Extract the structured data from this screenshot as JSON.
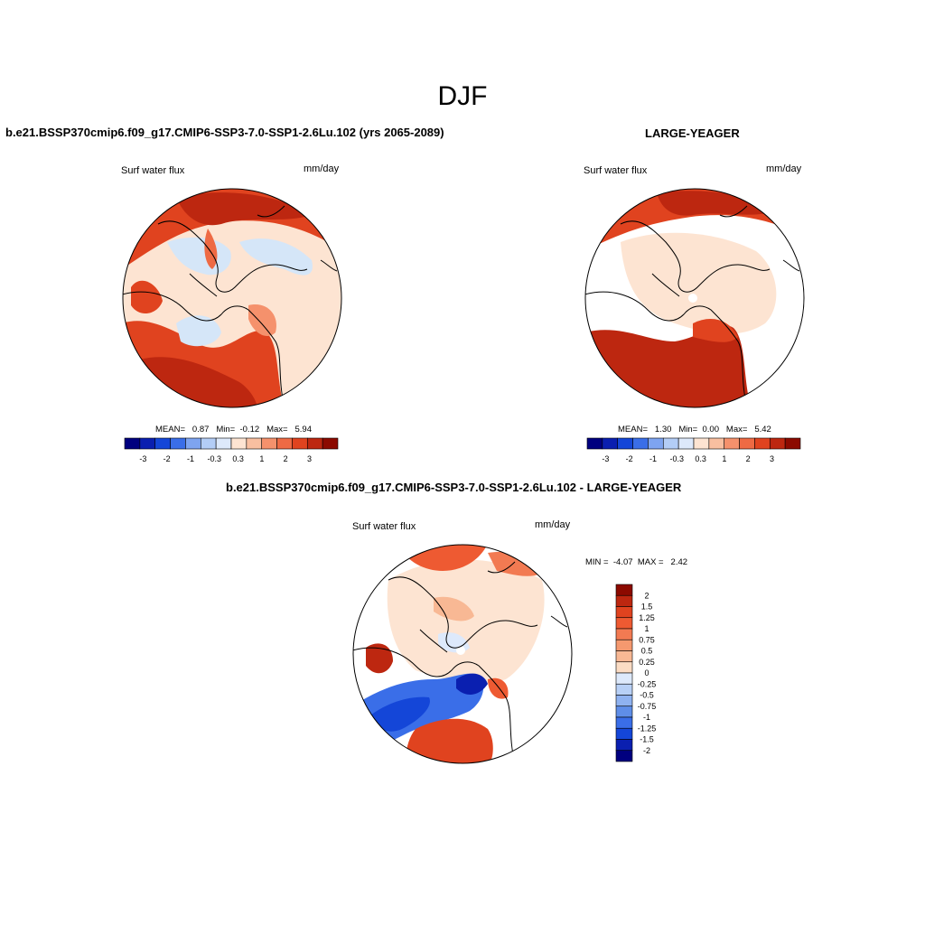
{
  "season": "DJF",
  "panels": {
    "test": {
      "title": "b.e21.BSSP370cmip6.f09_g17.CMIP6-SSP3-7.0-SSP1-2.6Lu.102 (yrs 2065-2089)",
      "variable": "Surf water flux",
      "units": "mm/day",
      "stats": {
        "mean_label": "MEAN=",
        "mean": "0.87",
        "min_label": "Min=",
        "min": "-0.12",
        "max_label": "Max=",
        "max": "5.94"
      }
    },
    "obs": {
      "title": "LARGE-YEAGER",
      "variable": "Surf water flux",
      "units": "mm/day",
      "stats": {
        "mean_label": "MEAN=",
        "mean": "1.30",
        "min_label": "Min=",
        "min": "0.00",
        "max_label": "Max=",
        "max": "5.42"
      }
    },
    "diff": {
      "title": "b.e21.BSSP370cmip6.f09_g17.CMIP6-SSP3-7.0-SSP1-2.6Lu.102 - LARGE-YEAGER",
      "variable": "Surf water flux",
      "units": "mm/day",
      "stats": {
        "min_label": "MIN =",
        "min": "-4.07",
        "max_label": "MAX =",
        "max": "2.42"
      }
    }
  },
  "chart_data": [
    {
      "type": "heatmap",
      "projection": "north-polar-stereographic",
      "title": "b.e21.BSSP370cmip6.f09_g17.CMIP6-SSP3-7.0-SSP1-2.6Lu.102 (yrs 2065-2089)",
      "variable": "Surf water flux",
      "units": "mm/day",
      "mean": 0.87,
      "min": -0.12,
      "max": 5.94,
      "colorbar": {
        "orientation": "horizontal",
        "tick_labels": [
          "-3",
          "-2",
          "-1",
          "-0.3",
          "0.3",
          "1",
          "2",
          "3"
        ],
        "colors": [
          "#00007f",
          "#0a1fb0",
          "#1446d8",
          "#3a6ee8",
          "#7ea4f0",
          "#b3cdf6",
          "#dde9fb",
          "#fde4d2",
          "#f9bfa0",
          "#f5916c",
          "#ee6a44",
          "#e0431f",
          "#bd2710",
          "#8c0a00"
        ]
      }
    },
    {
      "type": "heatmap",
      "projection": "north-polar-stereographic",
      "title": "LARGE-YEAGER",
      "variable": "Surf water flux",
      "units": "mm/day",
      "mean": 1.3,
      "min": 0.0,
      "max": 5.42,
      "colorbar": {
        "orientation": "horizontal",
        "tick_labels": [
          "-3",
          "-2",
          "-1",
          "-0.3",
          "0.3",
          "1",
          "2",
          "3"
        ],
        "colors": [
          "#00007f",
          "#0a1fb0",
          "#1446d8",
          "#3a6ee8",
          "#7ea4f0",
          "#b3cdf6",
          "#dde9fb",
          "#fde4d2",
          "#f9bfa0",
          "#f5916c",
          "#ee6a44",
          "#e0431f",
          "#bd2710",
          "#8c0a00"
        ]
      }
    },
    {
      "type": "heatmap",
      "projection": "north-polar-stereographic",
      "title": "b.e21.BSSP370cmip6.f09_g17.CMIP6-SSP3-7.0-SSP1-2.6Lu.102 - LARGE-YEAGER",
      "variable": "Surf water flux",
      "units": "mm/day",
      "min": -4.07,
      "max": 2.42,
      "colorbar": {
        "orientation": "vertical",
        "tick_labels": [
          "2",
          "1.5",
          "1.25",
          "1",
          "0.75",
          "0.5",
          "0.25",
          "0",
          "-0.25",
          "-0.5",
          "-0.75",
          "-1",
          "-1.25",
          "-1.5",
          "-2"
        ],
        "colors": [
          "#8c0a00",
          "#bd2710",
          "#e0431f",
          "#ee5a32",
          "#f27a52",
          "#f5996f",
          "#f8b894",
          "#fbdcc4",
          "#dde9fb",
          "#b8d0f6",
          "#8fb2f0",
          "#5f8ee8",
          "#3a6ee8",
          "#1446d8",
          "#0a1fb0",
          "#00007f"
        ]
      }
    }
  ]
}
